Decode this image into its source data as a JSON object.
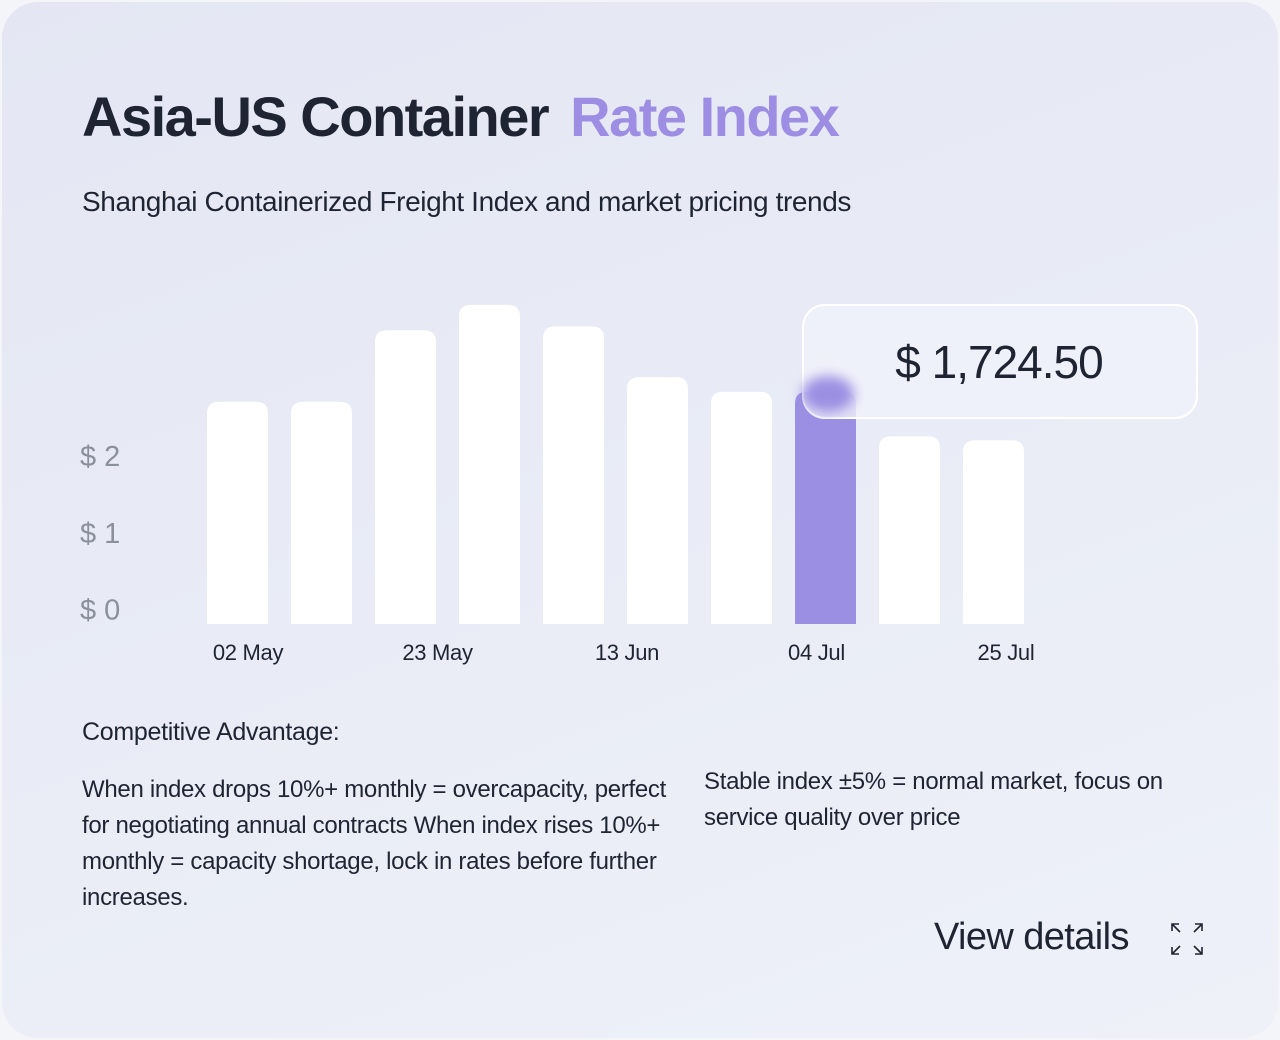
{
  "header": {
    "title": "Asia-US Container",
    "title_accent": "Rate Index",
    "subtitle": "Shanghai Containerized Freight Index and market pricing trends"
  },
  "chart_data": {
    "type": "bar",
    "categories": [
      null,
      null,
      null,
      null,
      null,
      null,
      null,
      null,
      null,
      null
    ],
    "values": [
      2.89,
      2.89,
      3.82,
      4.15,
      3.87,
      3.21,
      3.02,
      3.02,
      2.44,
      2.39
    ],
    "color": "#ffffff",
    "highlight_color": "#9b8fe3",
    "highlight_index": 7,
    "tooltip": "$ 1,724.50",
    "xtick_labels": [
      "02 May",
      "23 May",
      "13 Jun",
      "04 Jul",
      "25 Jul"
    ],
    "ylim": [
      0,
      4.2
    ],
    "yticks": [
      {
        "value": 0,
        "label": "$ 0"
      },
      {
        "value": 1,
        "label": "$ 1"
      },
      {
        "value": 2,
        "label": "$ 2"
      }
    ],
    "grid": false
  },
  "notes": {
    "heading": "Competitive Advantage:",
    "left": "When index drops 10%+ monthly = overcapacity, perfect for negotiating annual contracts When index rises 10%+ monthly = capacity shortage, lock in rates before further increases.",
    "right": "Stable index ±5% = normal market, focus on service quality over price"
  },
  "action": {
    "label": "View details"
  }
}
